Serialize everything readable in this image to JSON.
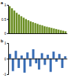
{
  "chart_data": [
    {
      "type": "bar",
      "title": "a",
      "categories": [
        null,
        null,
        null,
        null,
        null,
        null,
        null,
        null,
        null,
        null,
        null,
        null,
        null,
        null,
        null,
        null,
        null,
        null,
        null,
        null,
        null,
        null,
        null,
        null,
        null
      ],
      "values": [
        0.95,
        0.88,
        0.8,
        0.72,
        0.66,
        0.6,
        0.55,
        0.5,
        0.46,
        0.42,
        0.39,
        0.36,
        0.33,
        0.3,
        0.28,
        0.25,
        0.23,
        0.21,
        0.19,
        0.17,
        0.15,
        0.13,
        0.11,
        0.09,
        0.07
      ],
      "color": "#6b8e23",
      "ylim": [
        0,
        1
      ],
      "yticks": [
        0,
        0.5,
        1
      ],
      "grid": false
    },
    {
      "type": "bar",
      "title": "b",
      "categories": [
        null,
        null,
        null,
        null,
        null,
        null,
        null,
        null,
        null,
        null,
        null,
        null,
        null,
        null,
        null,
        null,
        null,
        null,
        null,
        null
      ],
      "values": [
        0.3,
        -0.8,
        0.5,
        -0.6,
        0.2,
        -0.9,
        0.4,
        -0.5,
        0.6,
        -0.3,
        -0.7,
        0.35,
        -0.4,
        0.25,
        -0.85,
        0.45,
        -0.2,
        0.3,
        -0.6,
        0.15
      ],
      "color": "#3b6fb6",
      "ylim": [
        -1,
        1
      ],
      "yticks": [
        -1,
        0,
        1
      ],
      "grid": false
    }
  ]
}
